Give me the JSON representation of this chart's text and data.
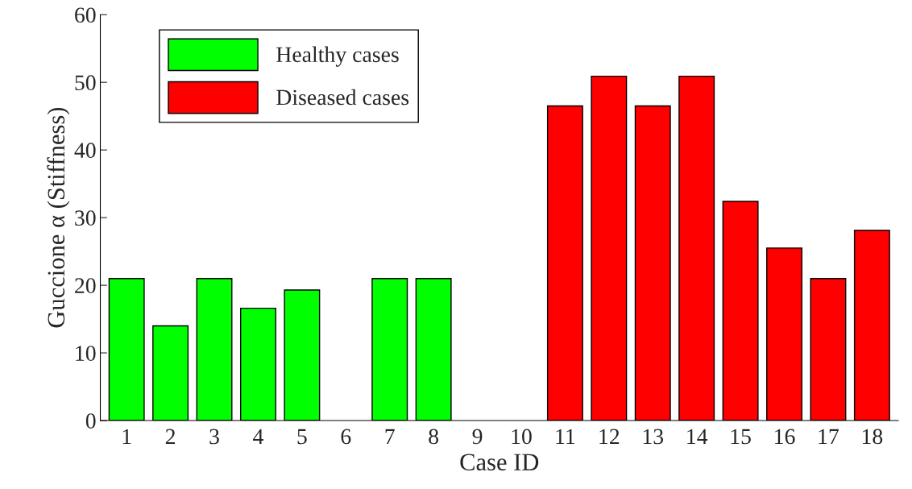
{
  "chart_data": {
    "type": "bar",
    "xlabel": "Case ID",
    "ylabel": "Guccione α (Stiffness)",
    "categories": [
      "1",
      "2",
      "3",
      "4",
      "5",
      "6",
      "7",
      "8",
      "9",
      "10",
      "11",
      "12",
      "13",
      "14",
      "15",
      "16",
      "17",
      "18"
    ],
    "series": [
      {
        "name": "Healthy cases",
        "color": "#00ff00",
        "values": [
          21,
          14,
          21,
          16.6,
          19.3,
          null,
          21,
          21,
          null,
          null,
          null,
          null,
          null,
          null,
          null,
          null,
          null,
          null
        ]
      },
      {
        "name": "Diseased cases",
        "color": "#ff0000",
        "values": [
          null,
          null,
          null,
          null,
          null,
          null,
          null,
          null,
          null,
          null,
          46.5,
          50.9,
          46.5,
          50.9,
          32.4,
          25.5,
          21,
          28.1
        ]
      }
    ],
    "ylim": [
      0,
      60
    ],
    "yticks": [
      0,
      10,
      20,
      30,
      40,
      50,
      60
    ],
    "grid": false,
    "legend": "top left"
  }
}
